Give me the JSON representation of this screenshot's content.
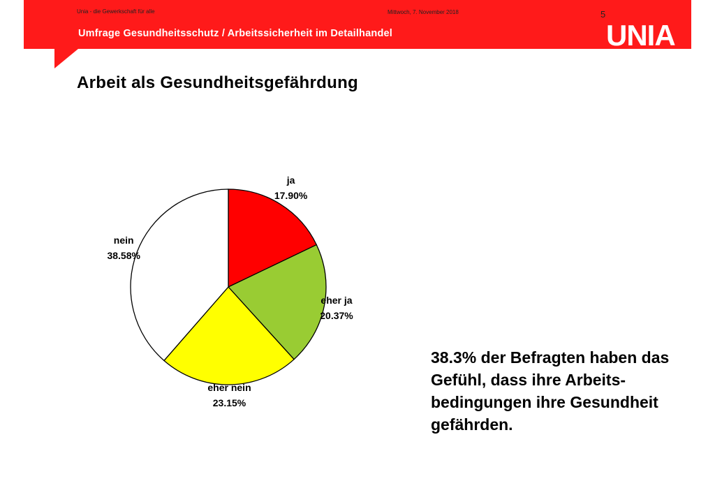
{
  "header": {
    "org_tagline": "Unia - die Gewerkschaft für alle",
    "date": "Mittwoch, 7. November 2018",
    "page_number": "5",
    "subtitle": "Umfrage Gesundheitsschutz / Arbeitssicherheit im Detailhandel",
    "logo": "UNIA",
    "band_color": "#ff1a1a"
  },
  "page_title": "Arbeit als Gesundheitsgefährdung",
  "chart_data": {
    "type": "pie",
    "title": "",
    "slices": [
      {
        "label": "ja",
        "value": 17.9,
        "value_label": "17.90%",
        "color": "#ff0000"
      },
      {
        "label": "eher ja",
        "value": 20.37,
        "value_label": "20.37%",
        "color": "#99cc33"
      },
      {
        "label": "eher nein",
        "value": 23.15,
        "value_label": "23.15%",
        "color": "#ffff00"
      },
      {
        "label": "nein",
        "value": 38.58,
        "value_label": "38.58%",
        "color": "#ffffff"
      }
    ]
  },
  "takeaway": "38.3% der Befragten haben das Gefühl, dass ihre Arbeits-bedingungen ihre Gesundheit gefährden."
}
